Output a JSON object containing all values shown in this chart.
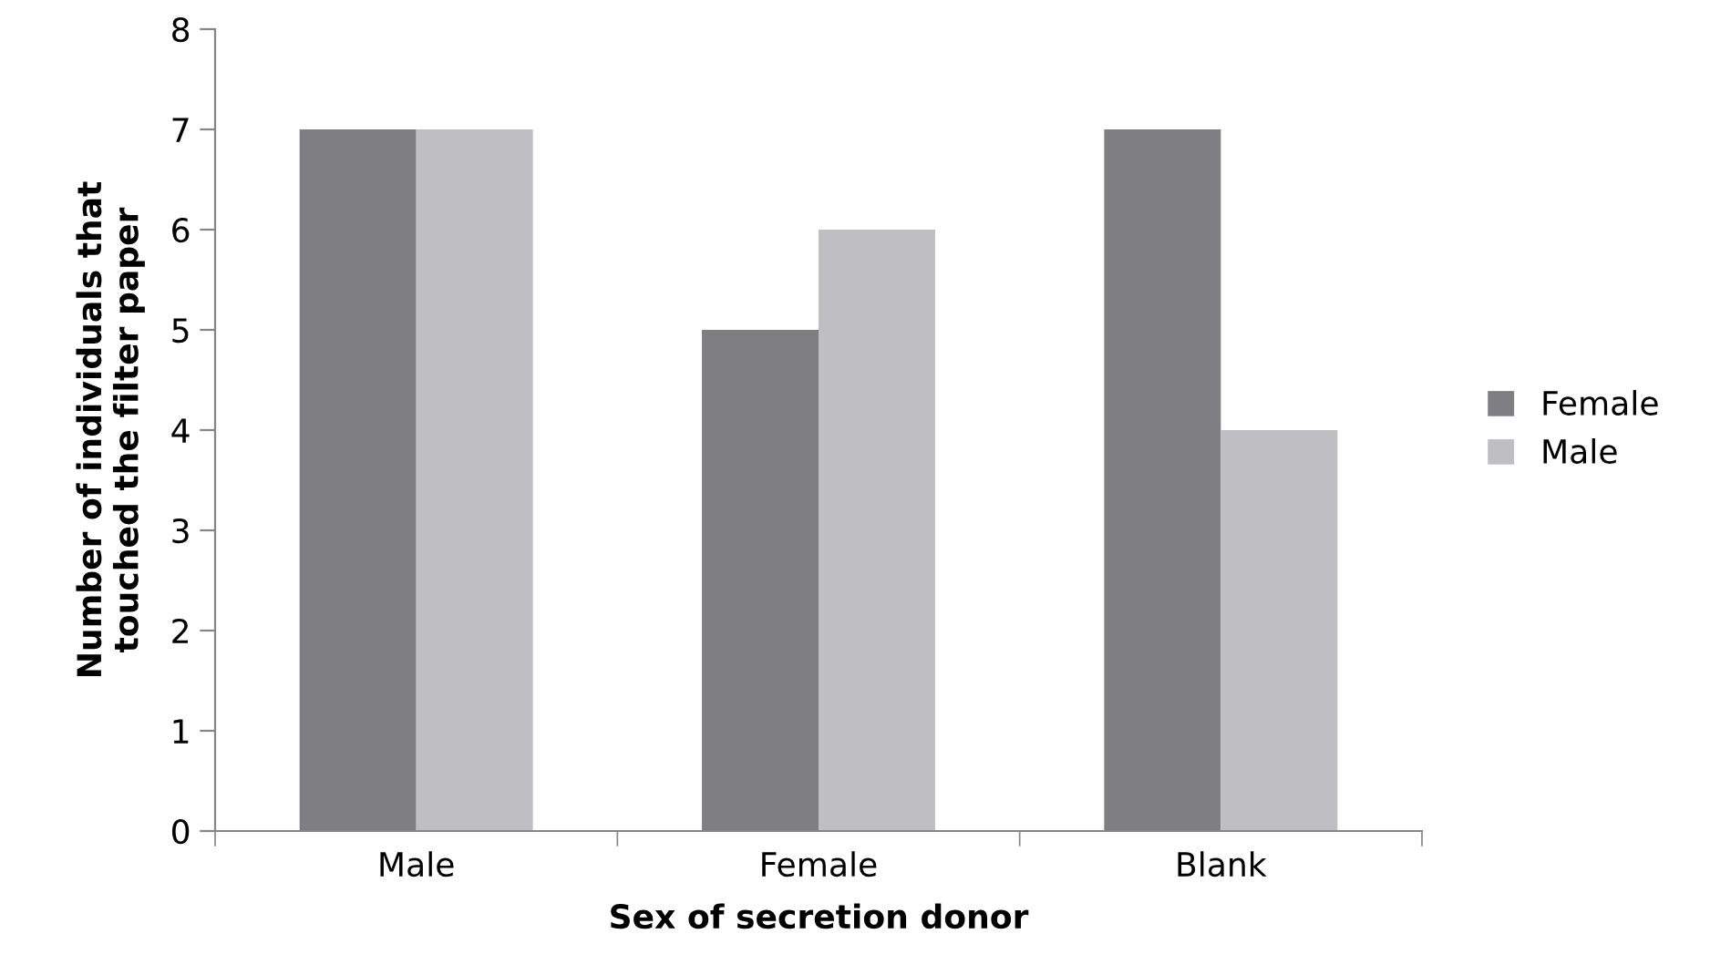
{
  "chart_data": {
    "type": "bar",
    "xlabel": "Sex of secretion donor",
    "ylabel": "Number of individuals that\ntouched the filter paper",
    "categories": [
      "Male",
      "Female",
      "Blank"
    ],
    "series": [
      {
        "name": "Female",
        "color": "#7f7f83",
        "values": [
          7,
          5,
          7
        ]
      },
      {
        "name": "Male",
        "color": "#bfbfc3",
        "values": [
          7,
          6,
          4
        ]
      }
    ],
    "ylim": [
      0,
      8
    ],
    "yticks": [
      0,
      1,
      2,
      3,
      4,
      5,
      6,
      7,
      8
    ],
    "grid": false,
    "legend": "right"
  }
}
